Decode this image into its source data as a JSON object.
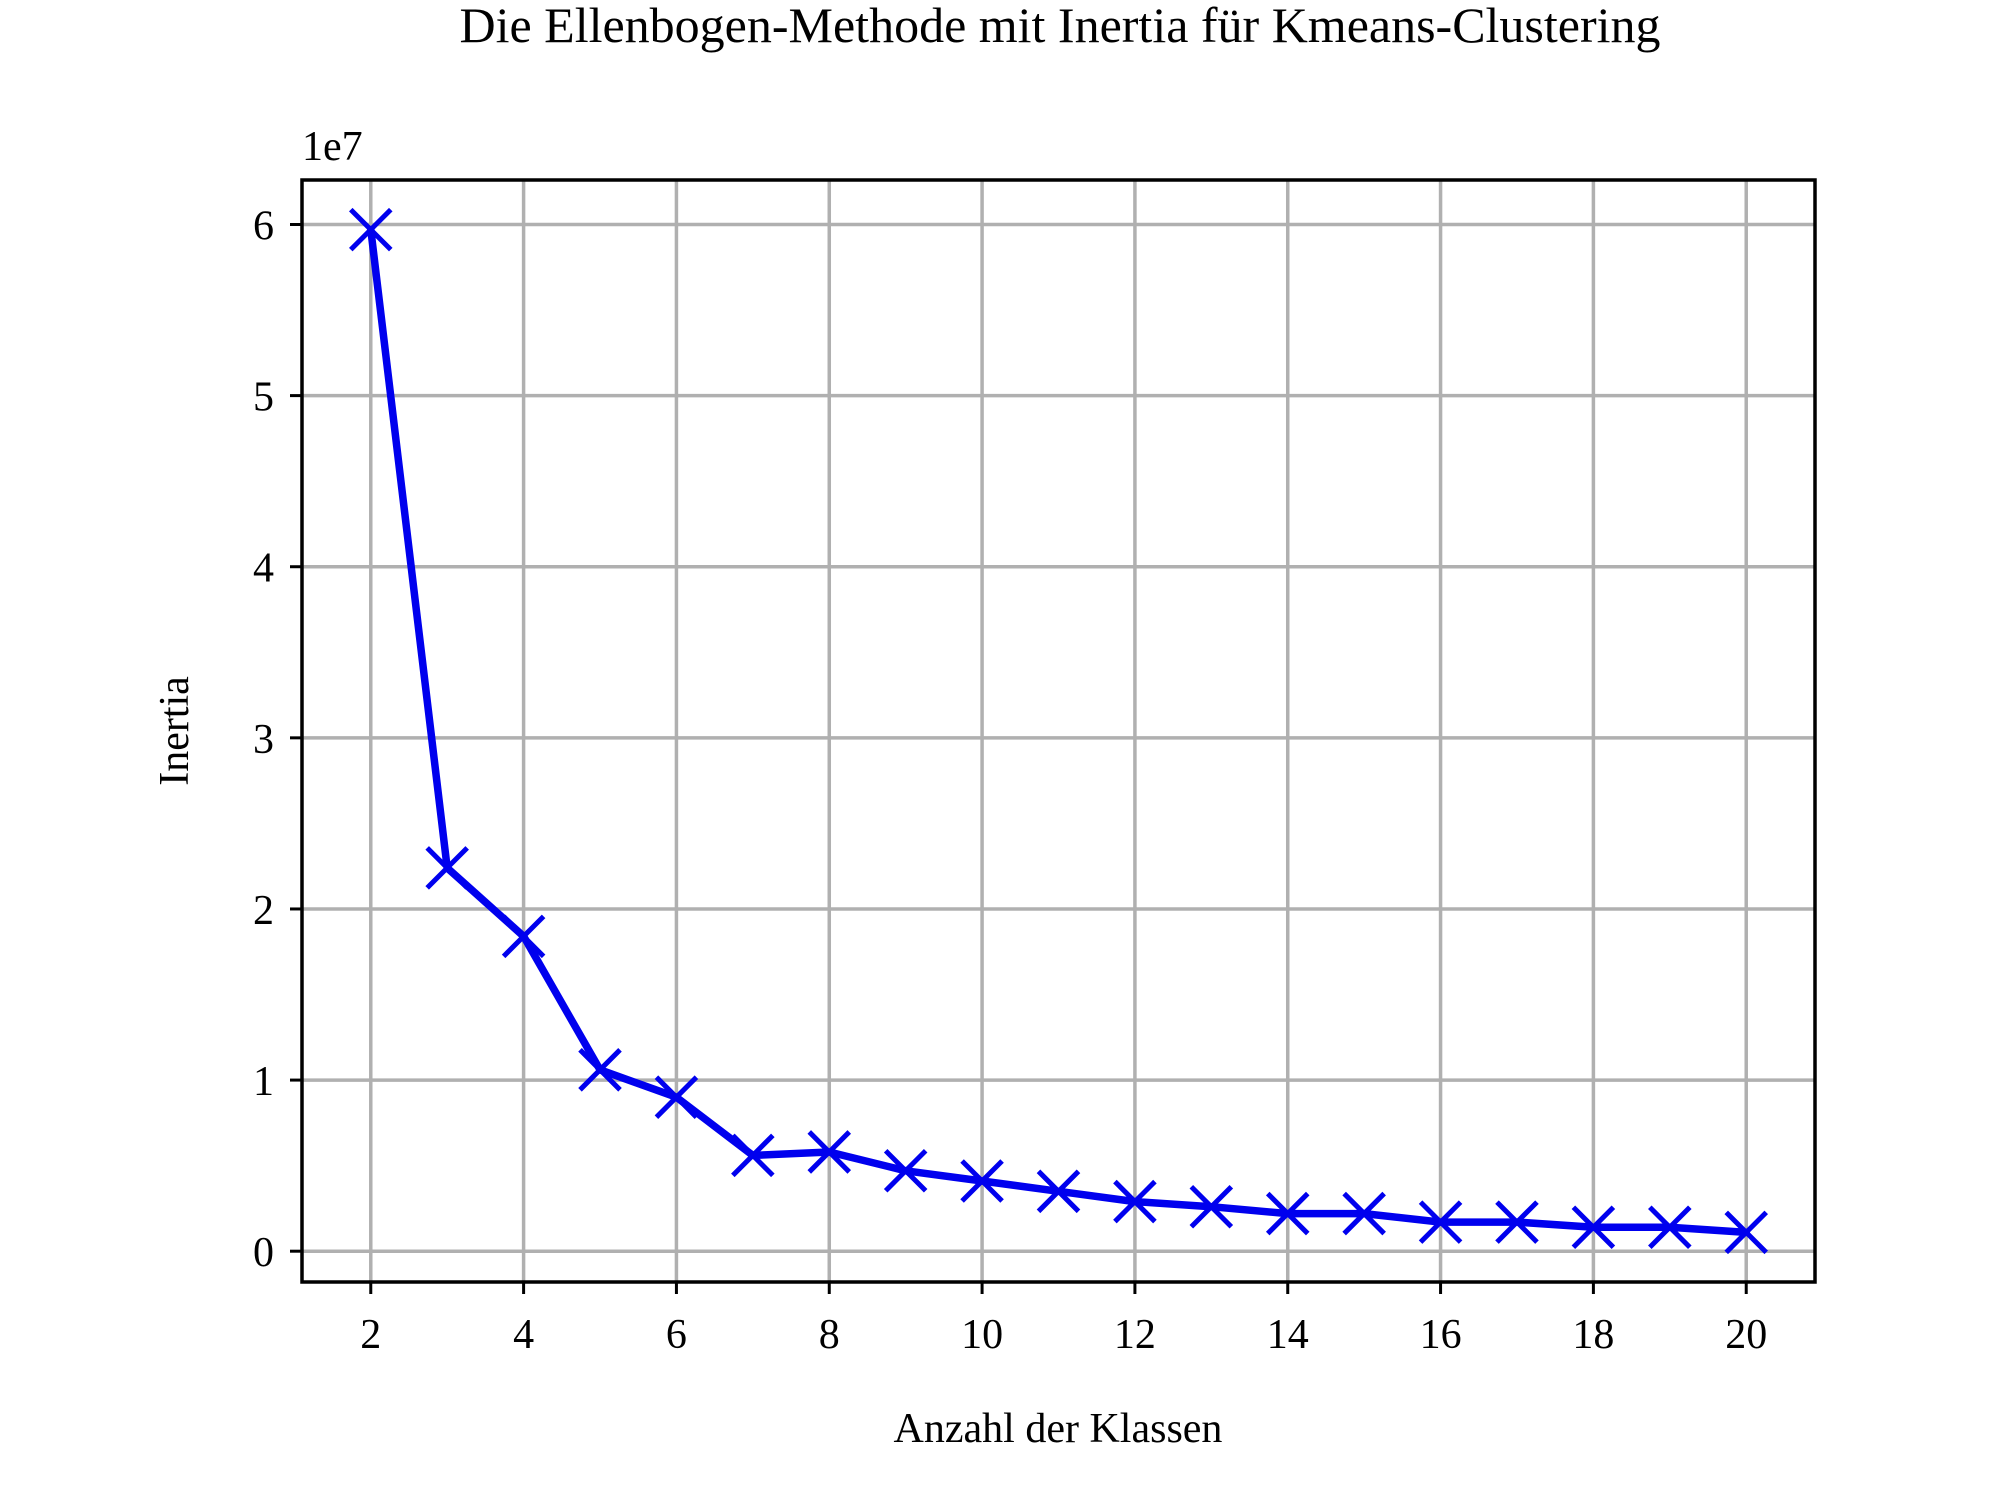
{
  "chart_data": {
    "type": "line",
    "title": "Die Ellenbogen-Methode mit Inertia für Kmeans-Clustering",
    "xlabel": "Anzahl der Klassen",
    "ylabel": "Inertia",
    "y_offset_label": "1e7",
    "x": [
      2,
      3,
      4,
      5,
      6,
      7,
      8,
      9,
      10,
      11,
      12,
      13,
      14,
      15,
      16,
      17,
      18,
      19,
      20
    ],
    "series": [
      {
        "values": [
          59700000,
          22400000,
          18400000,
          10600000,
          9000000,
          5600000,
          5800000,
          4700000,
          4100000,
          3500000,
          2900000,
          2600000,
          2200000,
          2200000,
          1700000,
          1700000,
          1400000,
          1400000,
          1100000
        ],
        "color": "#0000ee",
        "marker": "x"
      }
    ],
    "xlim": [
      1.1,
      20.9
    ],
    "ylim": [
      -1800000,
      62600000
    ],
    "xticks": [
      2,
      4,
      6,
      8,
      10,
      12,
      14,
      16,
      18,
      20
    ],
    "xtick_labels": [
      "2",
      "4",
      "6",
      "8",
      "10",
      "12",
      "14",
      "16",
      "18",
      "20"
    ],
    "yticks": [
      0,
      10000000,
      20000000,
      30000000,
      40000000,
      50000000,
      60000000
    ],
    "ytick_labels": [
      "0",
      "1",
      "2",
      "3",
      "4",
      "5",
      "6"
    ],
    "grid": true,
    "legend": "none"
  }
}
